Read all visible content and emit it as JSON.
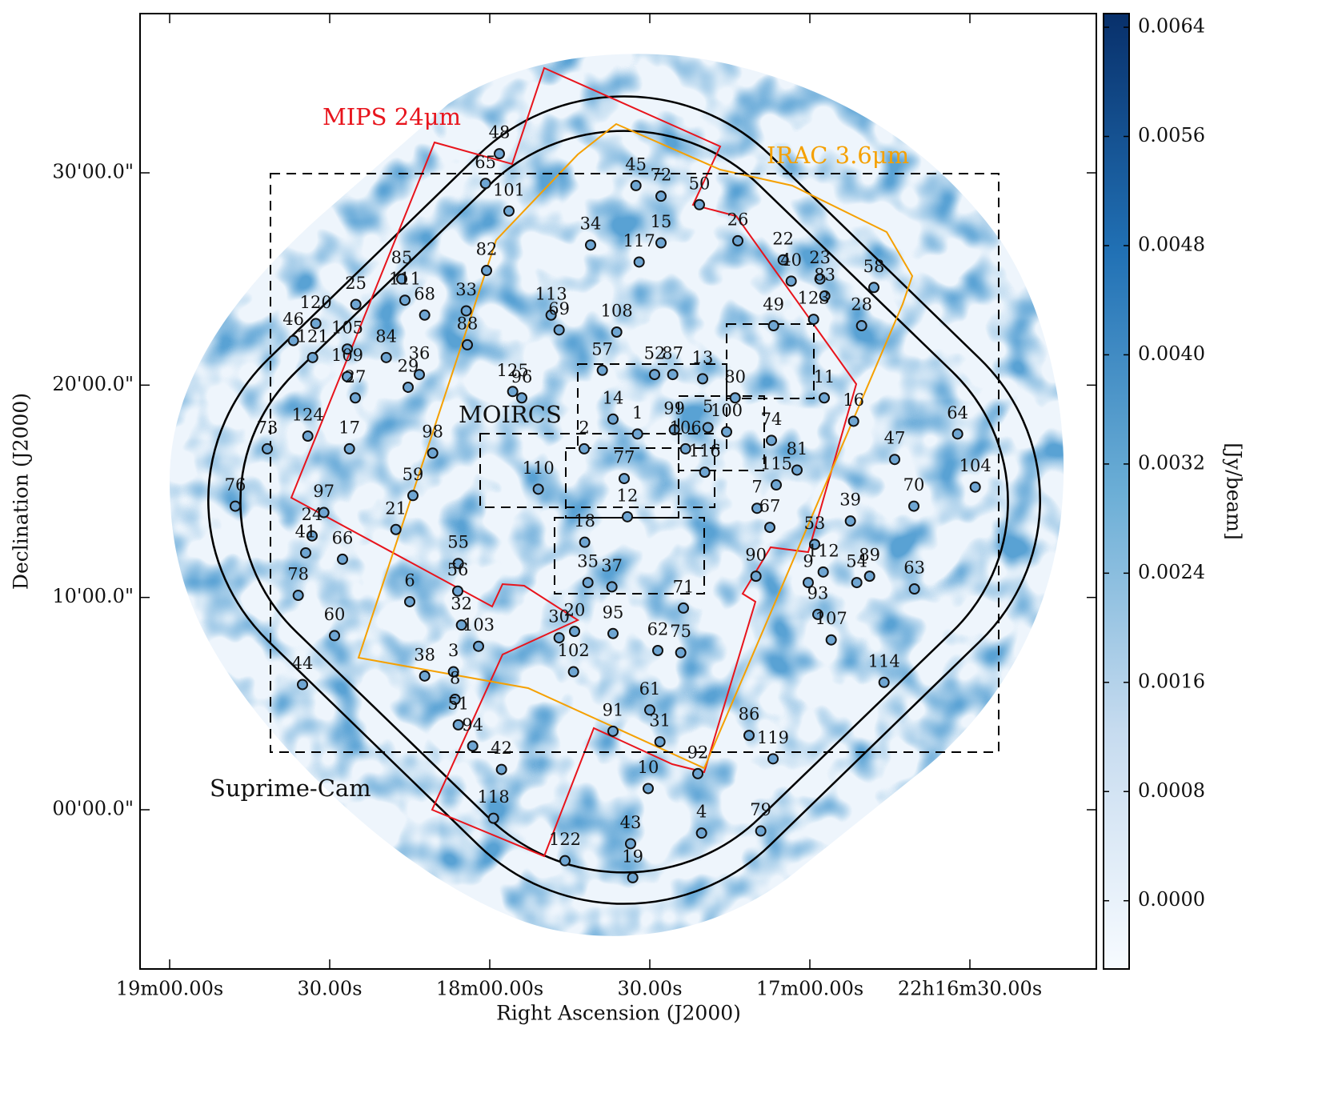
{
  "chart_data": {
    "type": "scatter",
    "x_label": "Right Ascension (J2000)",
    "y_label": "Declination (J2000)",
    "xlim": [
      1145.55,
      966.3
    ],
    "ylim": [
      -7.5,
      37.5
    ],
    "xticks": [
      {
        "value": 1140,
        "label": "19m00.00s"
      },
      {
        "value": 1110,
        "label": "30.00s"
      },
      {
        "value": 1080,
        "label": "18m00.00s"
      },
      {
        "value": 1050,
        "label": "30.00s"
      },
      {
        "value": 1020,
        "label": "17m00.00s"
      },
      {
        "value": 990,
        "label": "22h16m30.00s"
      }
    ],
    "yticks": [
      {
        "value": 0,
        "label": "00'00.0\""
      },
      {
        "value": 10,
        "label": "10'00.0\""
      },
      {
        "value": 20,
        "label": "20'00.0\""
      },
      {
        "value": 30,
        "label": "30'00.0\""
      }
    ],
    "marker_color": "#6fa6d3",
    "point_labels": [
      "48",
      "65",
      "101",
      "45",
      "72",
      "50",
      "34",
      "15",
      "117",
      "26",
      "22",
      "40",
      "23",
      "83",
      "123",
      "58",
      "28",
      "49",
      "85",
      "111",
      "68",
      "25",
      "33",
      "82",
      "113",
      "69",
      "108",
      "88",
      "120",
      "46",
      "121",
      "105",
      "84",
      "109",
      "27",
      "29",
      "36",
      "57",
      "52",
      "87",
      "13",
      "80",
      "11",
      "16",
      "125",
      "96",
      "14",
      "1",
      "99",
      "106",
      "5",
      "100",
      "74",
      "81",
      "115",
      "7",
      "67",
      "116",
      "2",
      "77",
      "12",
      "110",
      "124",
      "17",
      "98",
      "73",
      "76",
      "97",
      "24",
      "41",
      "66",
      "21",
      "59",
      "55",
      "56",
      "18",
      "35",
      "37",
      "71",
      "90",
      "53",
      "112",
      "9",
      "54",
      "89",
      "39",
      "70",
      "47",
      "64",
      "104",
      "63",
      "93",
      "107",
      "6",
      "78",
      "60",
      "32",
      "103",
      "30",
      "20",
      "95",
      "62",
      "75",
      "102",
      "38",
      "3",
      "8",
      "51",
      "94",
      "44",
      "114",
      "61",
      "91",
      "31",
      "86",
      "119",
      "92",
      "10",
      "42",
      "118",
      "79",
      "4",
      "43",
      "122",
      "19"
    ],
    "x": [
      1078.2,
      1080.8,
      1076.4,
      1052.6,
      1047.9,
      1040.7,
      1061.1,
      1047.9,
      1052.0,
      1033.5,
      1025.0,
      1023.5,
      1018.1,
      1017.2,
      1019.3,
      1008.0,
      1010.3,
      1026.8,
      1096.5,
      1095.9,
      1092.2,
      1105.1,
      1084.4,
      1080.6,
      1068.5,
      1067.0,
      1056.2,
      1084.2,
      1112.6,
      1116.8,
      1113.2,
      1106.7,
      1099.4,
      1106.7,
      1105.2,
      1095.3,
      1093.2,
      1058.9,
      1049.1,
      1045.7,
      1040.1,
      1034.0,
      1017.3,
      1011.8,
      1075.7,
      1074.0,
      1056.9,
      1052.3,
      1045.4,
      1043.3,
      1039.1,
      1035.6,
      1027.2,
      1022.4,
      1026.3,
      1029.9,
      1027.5,
      1039.7,
      1062.3,
      1054.8,
      1054.2,
      1070.9,
      1114.1,
      1106.3,
      1090.7,
      1121.7,
      1127.7,
      1111.1,
      1113.3,
      1114.5,
      1107.6,
      1097.6,
      1094.4,
      1085.9,
      1086.0,
      1062.2,
      1061.6,
      1057.1,
      1043.7,
      1030.1,
      1019.1,
      1017.5,
      1020.3,
      1011.2,
      1008.8,
      1012.4,
      1000.5,
      1004.1,
      992.3,
      989.0,
      1000.4,
      1018.5,
      1016.0,
      1095.0,
      1115.9,
      1109.1,
      1085.3,
      1082.1,
      1067.0,
      1064.1,
      1056.9,
      1048.5,
      1044.2,
      1064.3,
      1092.2,
      1086.8,
      1086.5,
      1085.9,
      1083.2,
      1115.1,
      1006.1,
      1050.0,
      1056.9,
      1048.1,
      1031.4,
      1026.9,
      1041.0,
      1050.3,
      1077.8,
      1079.3,
      1029.2,
      1040.3,
      1053.6,
      1065.9,
      1053.2
    ],
    "y": [
      30.9,
      29.5,
      28.2,
      29.4,
      28.9,
      28.5,
      26.6,
      26.7,
      25.8,
      26.8,
      25.9,
      24.9,
      25.0,
      24.2,
      23.1,
      24.6,
      22.8,
      22.8,
      25.0,
      24.0,
      23.3,
      23.8,
      23.5,
      25.4,
      23.3,
      22.6,
      22.5,
      21.9,
      22.9,
      22.1,
      21.3,
      21.7,
      21.3,
      20.4,
      19.4,
      19.9,
      20.5,
      20.7,
      20.5,
      20.5,
      20.3,
      19.4,
      19.4,
      18.3,
      19.7,
      19.4,
      18.4,
      17.7,
      17.9,
      17.0,
      18.0,
      17.8,
      17.4,
      16.0,
      15.3,
      14.2,
      13.3,
      15.9,
      17.0,
      15.6,
      13.8,
      15.1,
      17.6,
      17.0,
      16.8,
      17.0,
      14.3,
      14.0,
      12.9,
      12.1,
      11.8,
      13.2,
      14.8,
      11.6,
      10.3,
      12.6,
      10.7,
      10.5,
      9.5,
      11.0,
      12.5,
      11.2,
      10.7,
      10.7,
      11.0,
      13.6,
      14.3,
      16.5,
      17.7,
      15.2,
      10.4,
      9.2,
      8.0,
      9.8,
      10.1,
      8.2,
      8.7,
      7.7,
      8.1,
      8.4,
      8.3,
      7.5,
      7.4,
      6.5,
      6.3,
      6.5,
      5.2,
      4.0,
      3.0,
      5.9,
      6.0,
      4.7,
      3.7,
      3.2,
      3.5,
      2.4,
      1.7,
      1.0,
      1.9,
      -0.4,
      -1.0,
      -1.1,
      -1.6,
      -2.4,
      -3.2
    ],
    "annotations": [
      "MIPS 24μm",
      "IRAC 3.6μm",
      "MOIRCS",
      "Suprime-Cam"
    ],
    "colorbar": {
      "label": "[Jy/beam]",
      "lim": [
        -0.0005,
        0.0065
      ],
      "ticks": [
        {
          "value": 0,
          "label": "0.0000"
        },
        {
          "value": 0.0008,
          "label": "0.0008"
        },
        {
          "value": 0.0016,
          "label": "0.0016"
        },
        {
          "value": 0.0024,
          "label": "0.0024"
        },
        {
          "value": 0.0032,
          "label": "0.0032"
        },
        {
          "value": 0.004,
          "label": "0.0040"
        },
        {
          "value": 0.0048,
          "label": "0.0048"
        },
        {
          "value": 0.0056,
          "label": "0.0056"
        },
        {
          "value": 0.0064,
          "label": "0.0064"
        }
      ]
    }
  }
}
